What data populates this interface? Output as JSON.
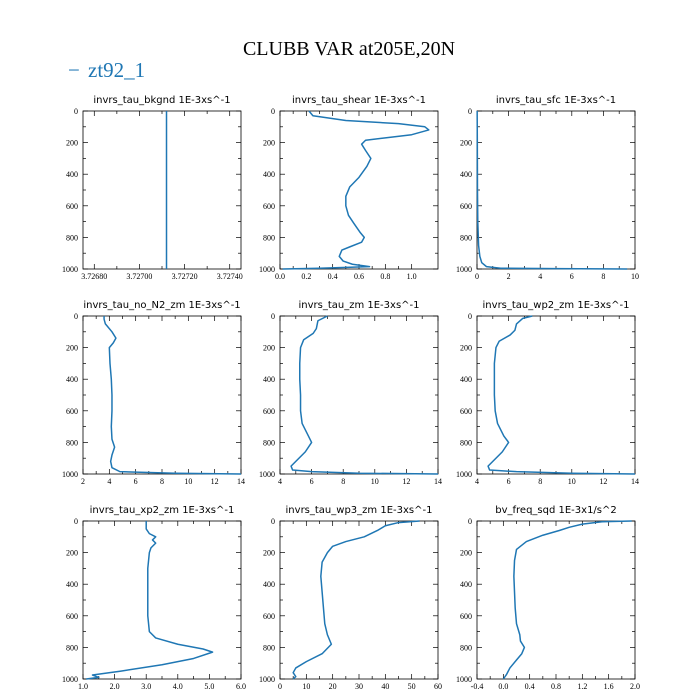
{
  "title": "CLUBB VAR at205E,20N",
  "legend": [
    {
      "name": "zt92_1",
      "marker": "−",
      "color": "#1f77b4"
    }
  ],
  "chart_data": [
    {
      "type": "line",
      "title": "invrs_tau_bkgnd   1E-3xs^-1",
      "xlim": [
        3.72675,
        3.72745
      ],
      "ylim": [
        1000,
        0
      ],
      "xticks": [
        3.7268,
        3.727,
        3.7272,
        3.7274
      ],
      "xtick_labels": [
        "3.72680",
        "3.72700",
        "3.72720",
        "3.72740"
      ],
      "yticks": [
        0,
        200,
        400,
        600,
        800,
        1000
      ],
      "series": [
        {
          "color": "#1f77b4",
          "points": [
            [
              3.72712,
              0
            ],
            [
              3.72712,
              1000
            ]
          ]
        }
      ]
    },
    {
      "type": "line",
      "title": "invrs_tau_shear   1E-3xs^-1",
      "xlim": [
        0,
        1.2
      ],
      "ylim": [
        1000,
        0
      ],
      "xticks": [
        0,
        0.2,
        0.4,
        0.6,
        0.8,
        1.0
      ],
      "xtick_labels": [
        "0.0",
        "0.2",
        "0.4",
        "0.6",
        "0.8",
        "1.0"
      ],
      "yticks": [
        0,
        200,
        400,
        600,
        800,
        1000
      ],
      "series": [
        {
          "color": "#1f77b4",
          "points": [
            [
              0.22,
              0
            ],
            [
              0.25,
              30
            ],
            [
              0.5,
              60
            ],
            [
              0.9,
              80
            ],
            [
              1.1,
              100
            ],
            [
              1.13,
              120
            ],
            [
              1.0,
              150
            ],
            [
              0.8,
              170
            ],
            [
              0.65,
              185
            ],
            [
              0.62,
              210
            ],
            [
              0.65,
              250
            ],
            [
              0.69,
              300
            ],
            [
              0.66,
              350
            ],
            [
              0.6,
              420
            ],
            [
              0.53,
              480
            ],
            [
              0.5,
              540
            ],
            [
              0.5,
              600
            ],
            [
              0.52,
              660
            ],
            [
              0.56,
              710
            ],
            [
              0.61,
              770
            ],
            [
              0.64,
              800
            ],
            [
              0.62,
              830
            ],
            [
              0.53,
              860
            ],
            [
              0.47,
              880
            ],
            [
              0.45,
              920
            ],
            [
              0.48,
              950
            ],
            [
              0.55,
              970
            ],
            [
              0.68,
              985
            ],
            [
              0.3,
              995
            ],
            [
              0.02,
              1000
            ]
          ]
        }
      ]
    },
    {
      "type": "line",
      "title": "invrs_tau_sfc   1E-3xs^-1",
      "xlim": [
        0,
        10
      ],
      "ylim": [
        1000,
        0
      ],
      "xticks": [
        0,
        2,
        4,
        6,
        8,
        10
      ],
      "xtick_labels": [
        "0",
        "2",
        "4",
        "6",
        "8",
        "10"
      ],
      "yticks": [
        0,
        200,
        400,
        600,
        800,
        1000
      ],
      "series": [
        {
          "color": "#1f77b4",
          "points": [
            [
              0.01,
              0
            ],
            [
              0.02,
              200
            ],
            [
              0.03,
              500
            ],
            [
              0.05,
              700
            ],
            [
              0.1,
              850
            ],
            [
              0.18,
              920
            ],
            [
              0.3,
              960
            ],
            [
              0.6,
              985
            ],
            [
              1.5,
              995
            ],
            [
              5,
              998
            ],
            [
              9.5,
              1000
            ]
          ]
        }
      ]
    },
    {
      "type": "line",
      "title": "invrs_tau_no_N2_zm   1E-3xs^-1",
      "xlim": [
        2,
        14
      ],
      "ylim": [
        1000,
        0
      ],
      "xticks": [
        2,
        4,
        6,
        8,
        10,
        12,
        14
      ],
      "xtick_labels": [
        "2",
        "4",
        "6",
        "8",
        "10",
        "12",
        "14"
      ],
      "yticks": [
        0,
        200,
        400,
        600,
        800,
        1000
      ],
      "series": [
        {
          "color": "#1f77b4",
          "points": [
            [
              3.6,
              0
            ],
            [
              3.6,
              20
            ],
            [
              3.7,
              50
            ],
            [
              4.2,
              100
            ],
            [
              4.5,
              140
            ],
            [
              4.3,
              170
            ],
            [
              4.0,
              200
            ],
            [
              4.05,
              300
            ],
            [
              4.15,
              400
            ],
            [
              4.2,
              500
            ],
            [
              4.2,
              600
            ],
            [
              4.15,
              700
            ],
            [
              4.2,
              780
            ],
            [
              4.4,
              830
            ],
            [
              4.2,
              880
            ],
            [
              4.1,
              920
            ],
            [
              4.2,
              960
            ],
            [
              4.8,
              985
            ],
            [
              9,
              995
            ],
            [
              14,
              1000
            ]
          ]
        }
      ]
    },
    {
      "type": "line",
      "title": "invrs_tau_zm   1E-3xs^-1",
      "xlim": [
        4,
        14
      ],
      "ylim": [
        1000,
        0
      ],
      "xticks": [
        4,
        6,
        8,
        10,
        12,
        14
      ],
      "xtick_labels": [
        "4",
        "6",
        "8",
        "10",
        "12",
        "14"
      ],
      "yticks": [
        0,
        200,
        400,
        600,
        800,
        1000
      ],
      "series": [
        {
          "color": "#1f77b4",
          "points": [
            [
              7.0,
              0
            ],
            [
              6.4,
              30
            ],
            [
              6.3,
              80
            ],
            [
              6.1,
              110
            ],
            [
              5.5,
              150
            ],
            [
              5.3,
              200
            ],
            [
              5.25,
              300
            ],
            [
              5.25,
              400
            ],
            [
              5.3,
              500
            ],
            [
              5.3,
              600
            ],
            [
              5.4,
              680
            ],
            [
              5.8,
              760
            ],
            [
              6.0,
              800
            ],
            [
              5.6,
              860
            ],
            [
              5.0,
              920
            ],
            [
              4.7,
              950
            ],
            [
              4.8,
              975
            ],
            [
              6,
              985
            ],
            [
              9,
              995
            ],
            [
              14,
              1000
            ]
          ]
        }
      ]
    },
    {
      "type": "line",
      "title": "invrs_tau_wp2_zm   1E-3xs^-1",
      "xlim": [
        4,
        14
      ],
      "ylim": [
        1000,
        0
      ],
      "xticks": [
        4,
        6,
        8,
        10,
        12,
        14
      ],
      "xtick_labels": [
        "4",
        "6",
        "8",
        "10",
        "12",
        "14"
      ],
      "yticks": [
        0,
        200,
        400,
        600,
        800,
        1000
      ],
      "series": [
        {
          "color": "#1f77b4",
          "points": [
            [
              7.5,
              0
            ],
            [
              6.9,
              15
            ],
            [
              6.5,
              50
            ],
            [
              6.4,
              90
            ],
            [
              6.1,
              120
            ],
            [
              5.4,
              160
            ],
            [
              5.2,
              200
            ],
            [
              5.1,
              300
            ],
            [
              5.1,
              400
            ],
            [
              5.1,
              500
            ],
            [
              5.15,
              600
            ],
            [
              5.3,
              680
            ],
            [
              5.7,
              760
            ],
            [
              6.0,
              800
            ],
            [
              5.6,
              860
            ],
            [
              5.0,
              920
            ],
            [
              4.7,
              950
            ],
            [
              4.8,
              975
            ],
            [
              6.5,
              985
            ],
            [
              10,
              995
            ],
            [
              14,
              1000
            ]
          ]
        }
      ]
    },
    {
      "type": "line",
      "title": "invrs_tau_xp2_zm   1E-3xs^-1",
      "xlim": [
        1.0,
        6.0
      ],
      "ylim": [
        1000,
        0
      ],
      "xticks": [
        1.0,
        2.0,
        3.0,
        4.0,
        5.0,
        6.0
      ],
      "xtick_labels": [
        "1.0",
        "2.0",
        "3.0",
        "4.0",
        "5.0",
        "6.0"
      ],
      "yticks": [
        0,
        200,
        400,
        600,
        800,
        1000
      ],
      "series": [
        {
          "color": "#1f77b4",
          "points": [
            [
              3.0,
              0
            ],
            [
              3.0,
              50
            ],
            [
              3.1,
              80
            ],
            [
              3.3,
              100
            ],
            [
              3.2,
              120
            ],
            [
              3.3,
              140
            ],
            [
              3.15,
              170
            ],
            [
              3.1,
              200
            ],
            [
              3.05,
              300
            ],
            [
              3.05,
              400
            ],
            [
              3.05,
              500
            ],
            [
              3.05,
              600
            ],
            [
              3.1,
              700
            ],
            [
              3.3,
              740
            ],
            [
              4.0,
              780
            ],
            [
              4.8,
              810
            ],
            [
              5.1,
              830
            ],
            [
              4.5,
              870
            ],
            [
              3.5,
              910
            ],
            [
              2.2,
              950
            ],
            [
              1.3,
              975
            ],
            [
              1.5,
              990
            ],
            [
              1.1,
              1000
            ]
          ]
        }
      ]
    },
    {
      "type": "line",
      "title": "invrs_tau_wp3_zm   1E-3xs^-1",
      "xlim": [
        0,
        60
      ],
      "ylim": [
        1000,
        0
      ],
      "xticks": [
        0,
        10,
        20,
        30,
        40,
        50,
        60
      ],
      "xtick_labels": [
        "0",
        "10",
        "20",
        "30",
        "40",
        "50",
        "60"
      ],
      "yticks": [
        0,
        200,
        400,
        600,
        800,
        1000
      ],
      "series": [
        {
          "color": "#1f77b4",
          "points": [
            [
              53,
              0
            ],
            [
              45,
              10
            ],
            [
              40,
              30
            ],
            [
              37,
              60
            ],
            [
              32,
              100
            ],
            [
              25,
              130
            ],
            [
              20,
              160
            ],
            [
              18,
              200
            ],
            [
              16,
              260
            ],
            [
              15.5,
              350
            ],
            [
              16,
              450
            ],
            [
              16.5,
              550
            ],
            [
              17,
              650
            ],
            [
              18,
              720
            ],
            [
              19.5,
              780
            ],
            [
              16,
              840
            ],
            [
              10,
              890
            ],
            [
              6,
              930
            ],
            [
              5,
              960
            ],
            [
              6,
              985
            ],
            [
              5,
              1000
            ]
          ]
        }
      ]
    },
    {
      "type": "line",
      "title": "bv_freq_sqd   1E-3x1/s^2",
      "xlim": [
        -0.4,
        2.0
      ],
      "ylim": [
        1000,
        0
      ],
      "xticks": [
        -0.4,
        0,
        0.4,
        0.8,
        1.2,
        1.6,
        2.0
      ],
      "xtick_labels": [
        "-0.4",
        "0.0",
        "0.4",
        "0.8",
        "1.2",
        "1.6",
        "2.0"
      ],
      "yticks": [
        0,
        200,
        400,
        600,
        800,
        1000
      ],
      "series": [
        {
          "color": "#1f77b4",
          "points": [
            [
              1.95,
              0
            ],
            [
              1.5,
              5
            ],
            [
              1.2,
              20
            ],
            [
              1.0,
              40
            ],
            [
              0.85,
              60
            ],
            [
              0.6,
              90
            ],
            [
              0.35,
              130
            ],
            [
              0.2,
              180
            ],
            [
              0.17,
              250
            ],
            [
              0.16,
              350
            ],
            [
              0.17,
              450
            ],
            [
              0.18,
              550
            ],
            [
              0.2,
              650
            ],
            [
              0.25,
              720
            ],
            [
              0.26,
              760
            ],
            [
              0.32,
              800
            ],
            [
              0.28,
              840
            ],
            [
              0.2,
              880
            ],
            [
              0.1,
              930
            ],
            [
              0.05,
              970
            ],
            [
              0.0,
              1000
            ]
          ]
        }
      ]
    }
  ]
}
